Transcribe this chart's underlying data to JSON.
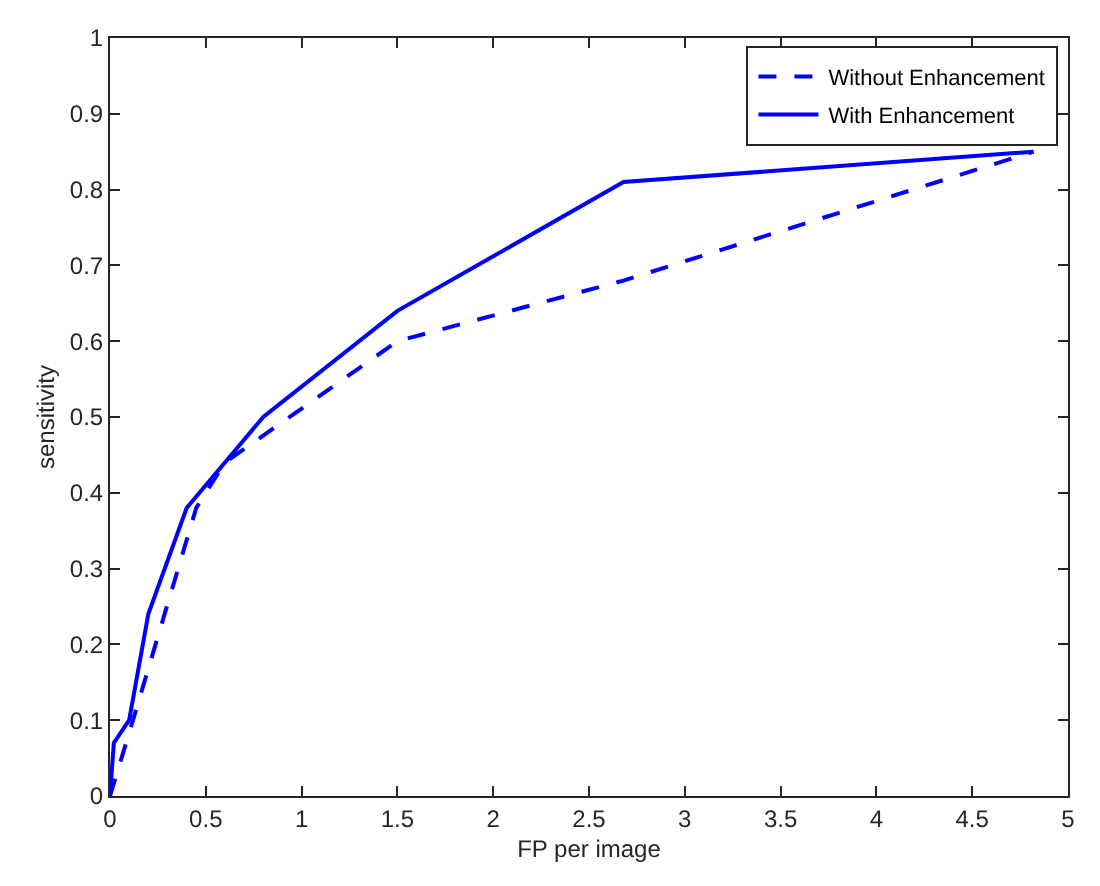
{
  "chart_data": {
    "type": "line",
    "xlabel": "FP per image",
    "ylabel": "sensitivity",
    "xlim": [
      0,
      5
    ],
    "xticks": [
      0,
      0.5,
      1,
      1.5,
      2,
      2.5,
      3,
      3.5,
      4,
      4.5,
      5
    ],
    "ylim": [
      0,
      1
    ],
    "yticks": [
      0,
      0.1,
      0.2,
      0.3,
      0.4,
      0.5,
      0.6,
      0.7,
      0.8,
      0.9,
      1
    ],
    "grid": false,
    "legend": "top right",
    "marker": "none",
    "series": [
      {
        "name": "Without Enhancement",
        "color": "#0000ff",
        "line_style": "dashed",
        "x": [
          0,
          0.12,
          0.45,
          0.6,
          1.5,
          2.68,
          4.82
        ],
        "values": [
          0,
          0.1,
          0.38,
          0.44,
          0.6,
          0.68,
          0.85
        ]
      },
      {
        "name": "With Enhancement",
        "color": "#0000ff",
        "line_style": "solid",
        "x": [
          0,
          0.02,
          0.1,
          0.2,
          0.4,
          0.8,
          1.5,
          2.68,
          4.82
        ],
        "values": [
          0,
          0.07,
          0.1,
          0.24,
          0.38,
          0.5,
          0.64,
          0.81,
          0.85
        ]
      }
    ]
  }
}
